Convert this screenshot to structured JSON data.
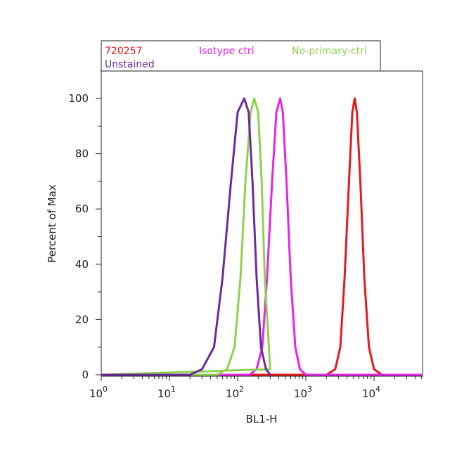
{
  "chart_data": {
    "type": "line",
    "xlabel": "BL1-H",
    "ylabel": "Percent of Max",
    "xscale": "log",
    "xlim": [
      1,
      60000
    ],
    "ylim": [
      0,
      105
    ],
    "x_ticks": [
      {
        "base": "10",
        "exp": "0"
      },
      {
        "base": "10",
        "exp": "1"
      },
      {
        "base": "10",
        "exp": "2"
      },
      {
        "base": "10",
        "exp": "3"
      },
      {
        "base": "10",
        "exp": "4"
      }
    ],
    "y_ticks": [
      "0",
      "20",
      "40",
      "60",
      "80",
      "100"
    ],
    "legend_position": "top",
    "series": [
      {
        "name": "720257",
        "color": "#e41a1c",
        "x": [
          1,
          2000,
          2700,
          3200,
          3700,
          4300,
          4800,
          5200,
          5600,
          6300,
          7200,
          8400,
          10000,
          13000,
          50000
        ],
        "y": [
          0,
          0,
          2,
          10,
          35,
          70,
          95,
          100,
          95,
          70,
          35,
          10,
          2,
          0,
          0
        ]
      },
      {
        "name": "Isotype ctrl",
        "color": "#e624e6",
        "x": [
          1,
          150,
          190,
          230,
          270,
          320,
          370,
          420,
          460,
          520,
          600,
          700,
          820,
          1000,
          50000
        ],
        "y": [
          0,
          0,
          2,
          10,
          35,
          70,
          95,
          100,
          95,
          70,
          35,
          10,
          2,
          0,
          0
        ]
      },
      {
        "name": "No-primary-ctrl",
        "color": "#8fd14f",
        "x": [
          1,
          50,
          70,
          90,
          110,
          130,
          155,
          175,
          200,
          225,
          250,
          300,
          1
        ],
        "y": [
          0,
          0,
          2,
          10,
          35,
          70,
          95,
          100,
          95,
          70,
          35,
          2,
          0
        ]
      },
      {
        "name": "Unstained",
        "color": "#6a2c9a",
        "x": [
          1,
          20,
          30,
          45,
          60,
          80,
          100,
          125,
          145,
          165,
          190,
          220,
          260,
          300
        ],
        "y": [
          0,
          0,
          2,
          10,
          35,
          70,
          95,
          100,
          95,
          70,
          35,
          10,
          2,
          0
        ]
      }
    ]
  }
}
